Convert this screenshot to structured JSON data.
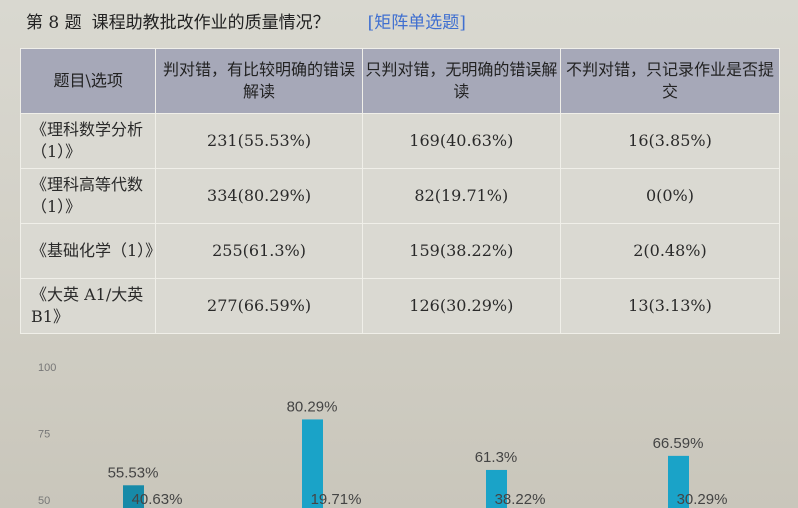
{
  "question": {
    "number": "第 8 题",
    "text": "课程助教批改作业的质量情况？",
    "type": "[矩阵单选题]"
  },
  "table": {
    "headers": [
      "题目\\选项",
      "判对错，有比较明确的错误解读",
      "只判对错，无明确的错误解读",
      "不判对错，只记录作业是否提交"
    ],
    "rows": [
      {
        "label": "《理科数学分析（1）》",
        "cells": [
          "231(55.53%)",
          "169(40.63%)",
          "16(3.85%)"
        ]
      },
      {
        "label": "《理科高等代数（1）》",
        "cells": [
          "334(80.29%)",
          "82(19.71%)",
          "0(0%)"
        ]
      },
      {
        "label": "《基础化学（1）》",
        "cells": [
          "255(61.3%)",
          "159(38.22%)",
          "2(0.48%)"
        ]
      },
      {
        "label": "《大英 A1/大英 B1》",
        "cells": [
          "277(66.59%)",
          "126(30.29%)",
          "13(3.13%)"
        ]
      }
    ]
  },
  "chart_data": {
    "type": "bar",
    "categories": [
      "《理科数学分析（1）》",
      "《理科高等代数（1）》",
      "《基础化学（1）》",
      "《大英 A1/大英 B1》"
    ],
    "series": [
      {
        "values": [
          55.53,
          80.29,
          61.3,
          66.59
        ],
        "labels": [
          "55.53%",
          "80.29%",
          "61.3%",
          "66.59%"
        ],
        "color": "#1aa3c8"
      },
      {
        "values": [
          40.63,
          19.71,
          38.22,
          30.29
        ],
        "labels": [
          "40.63%",
          "19.71%",
          "38.22%",
          "30.29%"
        ],
        "color": "#1aa3c8"
      }
    ],
    "yticks": [
      50,
      75,
      100
    ],
    "ylim": [
      0,
      100
    ],
    "grid": false
  }
}
